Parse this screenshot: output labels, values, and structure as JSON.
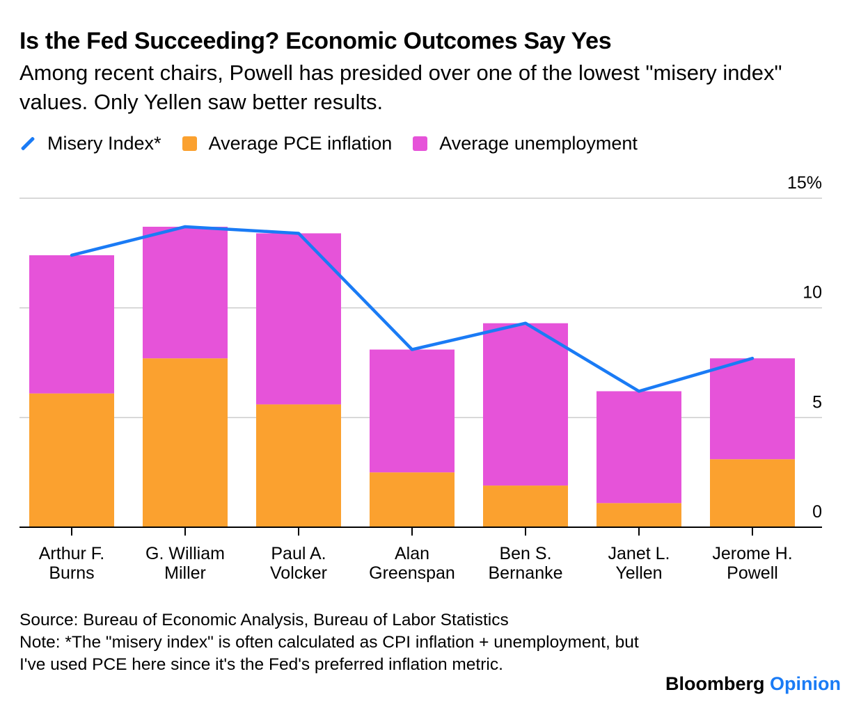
{
  "title": "Is the Fed Succeeding? Economic Outcomes Say Yes",
  "subtitle": "Among recent chairs, Powell has presided over one of the lowest \"misery index\" values. Only Yellen saw better results.",
  "legend": [
    {
      "label": "Misery Index*",
      "color": "#1a7bf5",
      "shape": "line"
    },
    {
      "label": "Average PCE inflation",
      "color": "#fba12f",
      "shape": "box"
    },
    {
      "label": "Average unemployment",
      "color": "#e653d9",
      "shape": "box"
    }
  ],
  "colors": {
    "line": "#1a7bf5",
    "inflation": "#fba12f",
    "unemployment": "#e653d9",
    "grid": "#cccccc",
    "axis": "#000000"
  },
  "chart_data": {
    "type": "bar",
    "stacked": true,
    "categories": [
      [
        "Arthur F.",
        "Burns"
      ],
      [
        "G. William",
        "Miller"
      ],
      [
        "Paul A.",
        "Volcker"
      ],
      [
        "Alan",
        "Greenspan"
      ],
      [
        "Ben S.",
        "Bernanke"
      ],
      [
        "Janet L.",
        "Yellen"
      ],
      [
        "Jerome H.",
        "Powell"
      ]
    ],
    "series": [
      {
        "name": "Average PCE inflation",
        "type": "bar",
        "values": [
          6.1,
          7.7,
          5.6,
          2.5,
          1.9,
          1.1,
          3.1
        ]
      },
      {
        "name": "Average unemployment",
        "type": "bar",
        "values": [
          6.3,
          6.0,
          7.8,
          5.6,
          7.4,
          5.1,
          4.6
        ]
      },
      {
        "name": "Misery Index*",
        "type": "line",
        "values": [
          12.4,
          13.7,
          13.4,
          8.1,
          9.3,
          6.2,
          7.7
        ]
      }
    ],
    "y_ticks": [
      {
        "value": 15,
        "label": "15%"
      },
      {
        "value": 10,
        "label": "10"
      },
      {
        "value": 5,
        "label": "5"
      },
      {
        "value": 0,
        "label": "0"
      }
    ],
    "ylim": [
      0,
      15
    ],
    "grid": true,
    "y_axis_side": "right",
    "legend_position": "top-left"
  },
  "footer": {
    "source": "Source: Bureau of Economic Analysis, Bureau of Labor Statistics",
    "note": "Note: *The \"misery index\" is often calculated as CPI inflation + unemployment, but I've used PCE here since it's the Fed's preferred inflation metric."
  },
  "brand": {
    "name": "Bloomberg",
    "section": "Opinion"
  }
}
